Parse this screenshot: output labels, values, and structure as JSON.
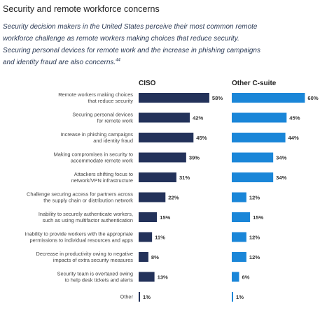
{
  "header": {
    "title": "Security and remote workforce concerns",
    "subtitle_lines": [
      "Security decision makers in the United States perceive their most common remote",
      "workforce challenge as remote workers making choices that reduce security.",
      "Securing personal devices for remote work and the increase in phishing campaigns",
      "and identity fraud are also concerns."
    ],
    "footnote_ref": "44"
  },
  "colors": {
    "ciso": "#23325a",
    "other": "#1a86d8"
  },
  "chart_data": {
    "type": "bar",
    "orientation": "horizontal",
    "categories": [
      [
        "Remote workers making choices",
        "that reduce security"
      ],
      [
        "Securing personal devices",
        "for remote work"
      ],
      [
        "Increase in phishing campaigns",
        "and identity fraud"
      ],
      [
        "Making compromises in security to",
        "accommodate remote work"
      ],
      [
        "Attackers shifting focus to",
        "network/VPN infrastructure"
      ],
      [
        "Challenge securing access for partners across",
        "the supply chain or distribution network"
      ],
      [
        "Inability to securely authenticate workers,",
        "such as using multifactor authentication"
      ],
      [
        "Inability to provide workers with the appropriate",
        "permissions to individual resources and apps"
      ],
      [
        "Decrease in productivity owing to negative",
        "impacts of extra security measures"
      ],
      [
        "Security team is overtaxed owing",
        "to help desk tickets and alerts"
      ],
      [
        "Other"
      ]
    ],
    "series": [
      {
        "name": "CISO",
        "values": [
          58,
          42,
          45,
          39,
          31,
          22,
          15,
          11,
          8,
          13,
          1
        ]
      },
      {
        "name": "Other C-suite",
        "values": [
          60,
          45,
          44,
          34,
          34,
          12,
          15,
          12,
          12,
          6,
          1
        ]
      }
    ],
    "value_suffix": "%",
    "xlim": [
      0,
      60
    ]
  }
}
